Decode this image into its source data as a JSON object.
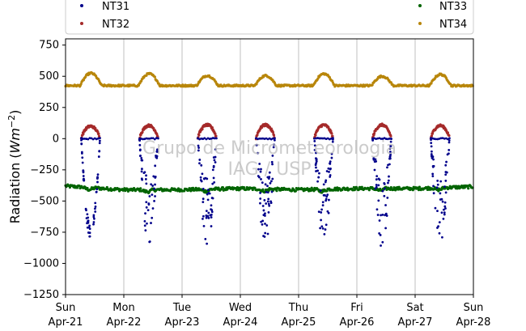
{
  "chart_data": {
    "type": "scatter",
    "title": "",
    "xlabel": "",
    "ylabel": "Radiation (Wm⁻²)",
    "ylabel_base": "Radiation (",
    "ylabel_unit": "Wm",
    "ylabel_exp": "−2",
    "ylabel_close": ")",
    "ylim": [
      -1250,
      800
    ],
    "yticks": [
      -1250,
      -1000,
      -750,
      -500,
      -250,
      0,
      250,
      500,
      750
    ],
    "ytick_labels": [
      "−1250",
      "−1000",
      "−750",
      "−500",
      "−250",
      "0",
      "250",
      "500",
      "750"
    ],
    "xlim": [
      "2024-04-21",
      "2024-04-28"
    ],
    "xticks": [
      {
        "day": "Sun",
        "date": "Apr-21"
      },
      {
        "day": "Mon",
        "date": "Apr-22"
      },
      {
        "day": "Tue",
        "date": "Apr-23"
      },
      {
        "day": "Wed",
        "date": "Apr-24"
      },
      {
        "day": "Thu",
        "date": "Apr-25"
      },
      {
        "day": "Fri",
        "date": "Apr-26"
      },
      {
        "day": "Sat",
        "date": "Apr-27"
      },
      {
        "day": "Sun",
        "date": "Apr-28"
      }
    ],
    "grid": "vertical-at-day-ticks",
    "legend": {
      "placement": "top",
      "columns": 2
    },
    "watermark": [
      "Grupo de Micrometeorologia",
      "IAG / USP"
    ],
    "series": [
      {
        "name": "NT31",
        "color": "#00008b",
        "daily_min": [
          -810,
          -870,
          -900,
          -880,
          -870,
          -900,
          -860
        ],
        "night_value": 0
      },
      {
        "name": "NT32",
        "color": "#a52a2a",
        "daily_peak": [
          100,
          105,
          110,
          110,
          110,
          110,
          105
        ],
        "night_value": 0
      },
      {
        "name": "NT33",
        "color": "#006400",
        "points_per_day": [
          -380,
          -410,
          -410,
          -400,
          -410,
          -400,
          -400,
          -385
        ]
      },
      {
        "name": "NT34",
        "color": "#b8860b",
        "night_value": 425,
        "daily_peak": [
          525,
          520,
          505,
          505,
          520,
          500,
          515
        ]
      }
    ]
  }
}
